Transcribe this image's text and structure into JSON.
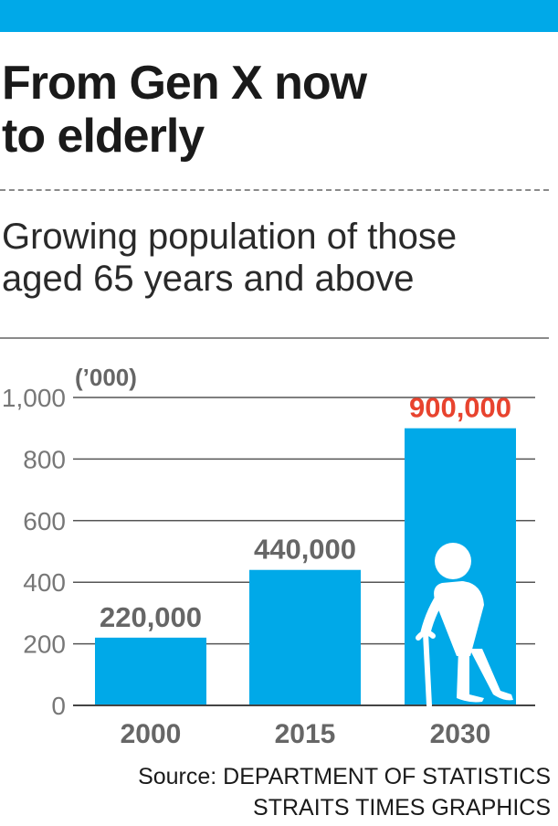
{
  "headline": [
    "From Gen X now",
    "to elderly"
  ],
  "subtitle": [
    "Growing population of those",
    "aged 65 years and above"
  ],
  "colors": {
    "accent": "#00a9e8",
    "highlight": "#e8432e",
    "gridline": "#555555",
    "text_muted": "#777777"
  },
  "icon": "elderly-person-with-cane-icon",
  "chart_data": {
    "type": "bar",
    "unit_label": "(’000)",
    "categories": [
      "2000",
      "2015",
      "2030"
    ],
    "values": [
      220,
      440,
      900
    ],
    "data_labels": [
      "220,000",
      "440,000",
      "900,000"
    ],
    "highlighted_index": 2,
    "yticks": [
      0,
      200,
      400,
      600,
      800,
      1000
    ],
    "ytick_labels": [
      "0",
      "200",
      "400",
      "600",
      "800",
      "1,000"
    ],
    "ylim": [
      0,
      1000
    ],
    "grid": true,
    "xlabel": "",
    "ylabel": ""
  },
  "source": [
    "Source: DEPARTMENT OF STATISTICS",
    "STRAITS TIMES GRAPHICS"
  ]
}
